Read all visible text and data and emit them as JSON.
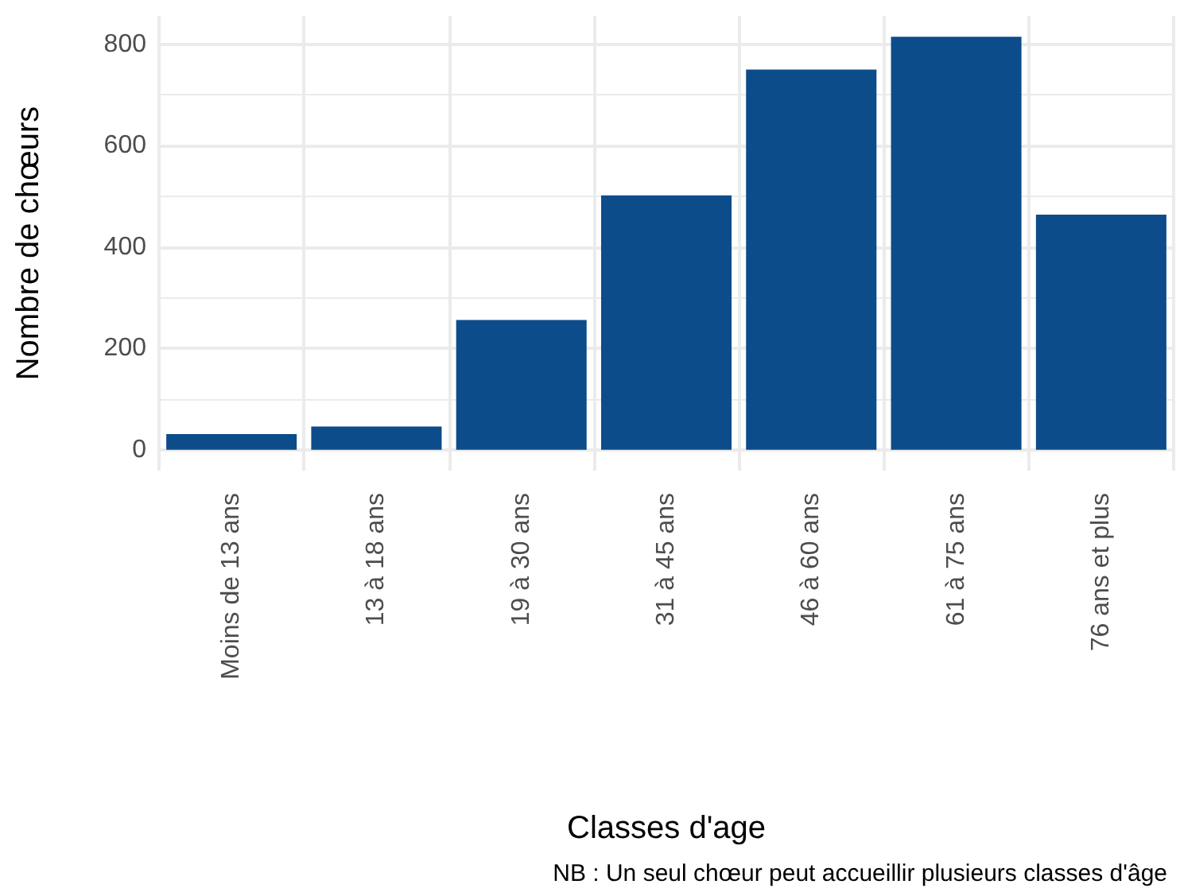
{
  "chart_data": {
    "type": "bar",
    "xlabel": "Classes d'age",
    "ylabel": "Nombre de chœurs",
    "categories": [
      "Moins de 13 ans",
      "13 à 18 ans",
      "19 à 30 ans",
      "31 à 45 ans",
      "46 à 60 ans",
      "61 à 75 ans",
      "76 ans et plus"
    ],
    "values": [
      31,
      46,
      256,
      502,
      750,
      815,
      464
    ],
    "color": "#0d4c8a",
    "ylim": [
      -41,
      856
    ],
    "yticks": [
      0,
      200,
      400,
      600,
      800
    ],
    "grid": true,
    "annotations": [
      "NB : Un seul chœur peut accueillir plusieurs classes d'âge"
    ]
  }
}
